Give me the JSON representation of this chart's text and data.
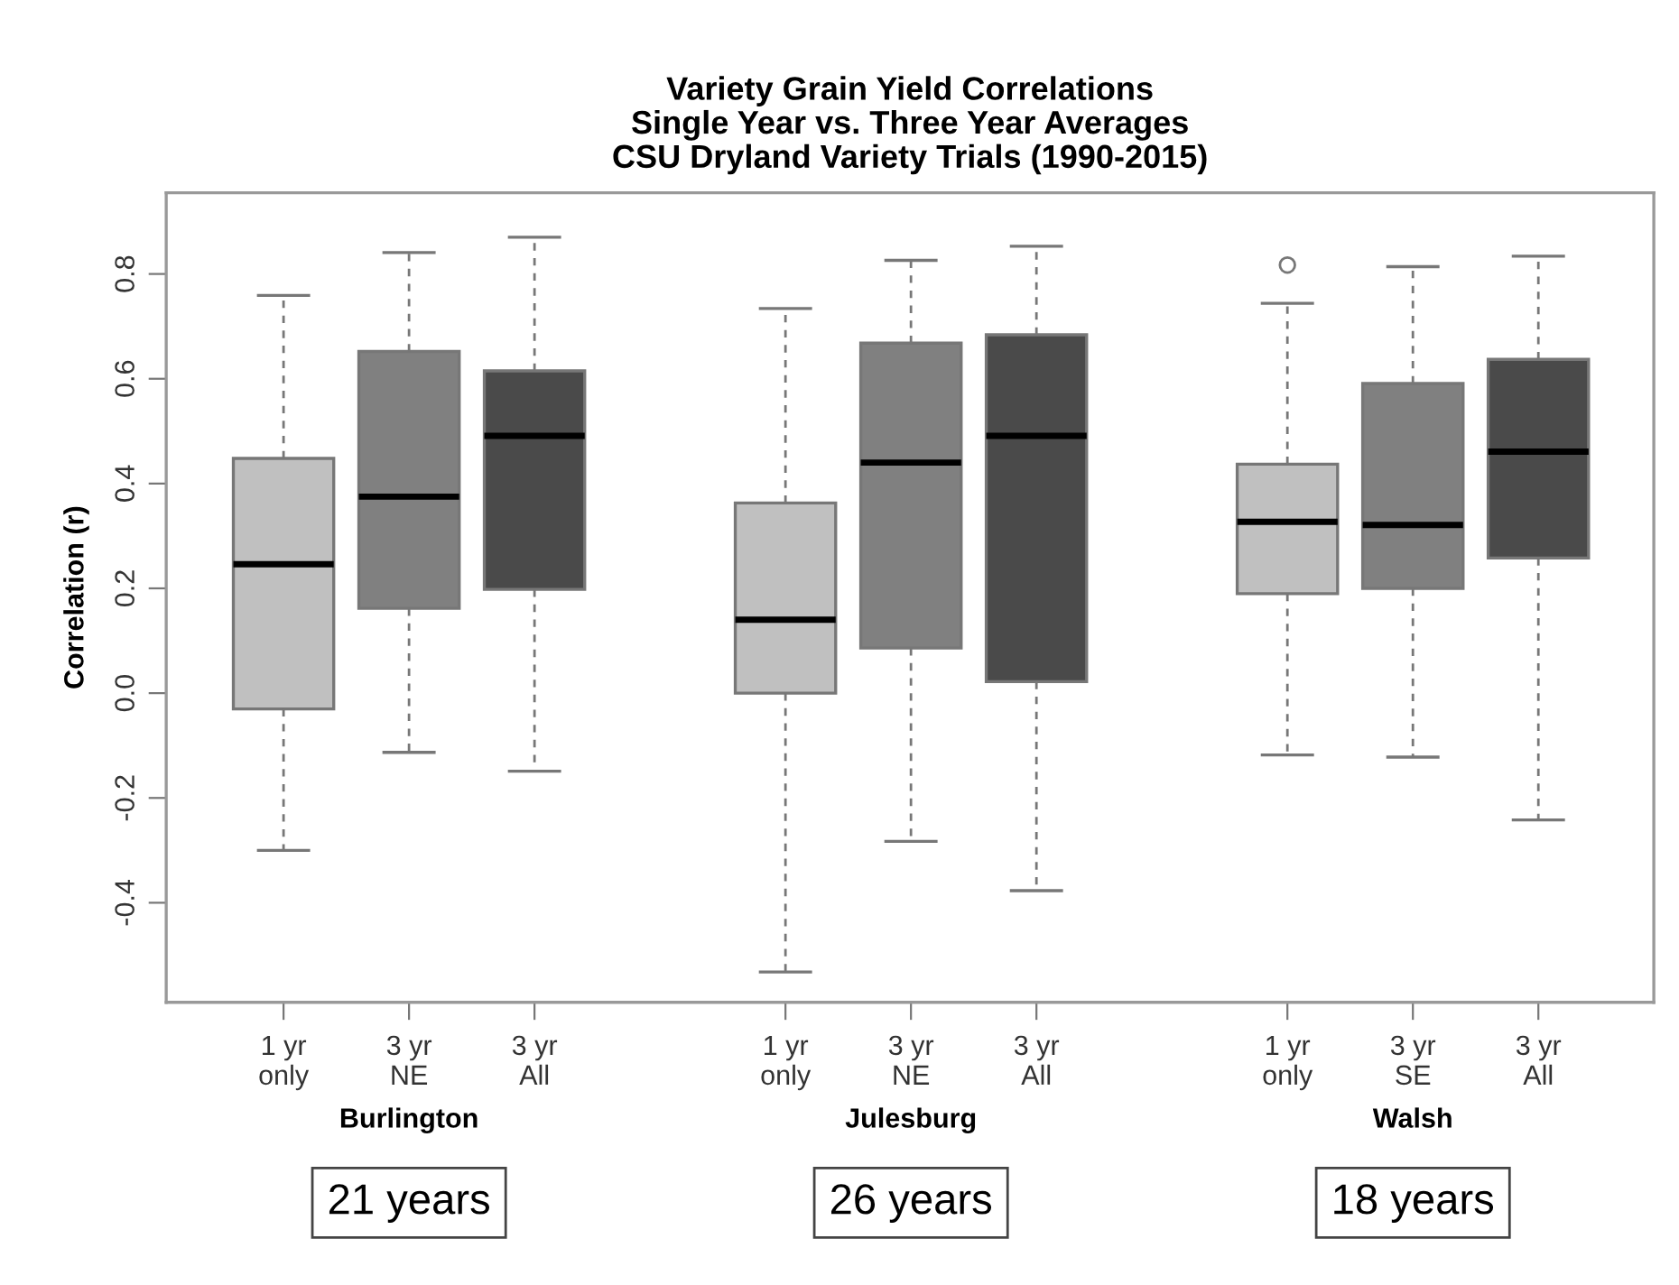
{
  "chart_data": {
    "type": "box",
    "title": "Variety Grain Yield Correlations\nSingle Year vs. Three Year Averages\nCSU Dryland Variety Trials (1990-2015)",
    "ylabel": "Correlation (r)",
    "categories": [
      "1 yr\nonly",
      "3 yr\nNE",
      "3 yr\nAll",
      null,
      "1 yr\nonly",
      "3 yr\nNE",
      "3 yr\nAll",
      null,
      "1 yr\nonly",
      "3 yr\nSE",
      "3 yr\nAll"
    ],
    "colors": [
      "#c0c0c0",
      "#808080",
      "#4a4a4a",
      null,
      "#c0c0c0",
      "#808080",
      "#4a4a4a",
      null,
      "#c0c0c0",
      "#808080",
      "#4a4a4a"
    ],
    "boxes": [
      {
        "low": -0.3,
        "q1": -0.03,
        "median": 0.246,
        "q3": 0.448,
        "high": 0.759
      },
      {
        "low": -0.113,
        "q1": 0.162,
        "median": 0.375,
        "q3": 0.652,
        "high": 0.841
      },
      {
        "low": -0.149,
        "q1": 0.198,
        "median": 0.491,
        "q3": 0.615,
        "high": 0.87
      },
      null,
      {
        "low": -0.532,
        "q1": 0.0,
        "median": 0.14,
        "q3": 0.363,
        "high": 0.734
      },
      {
        "low": -0.283,
        "q1": 0.086,
        "median": 0.44,
        "q3": 0.668,
        "high": 0.826
      },
      {
        "low": -0.377,
        "q1": 0.022,
        "median": 0.491,
        "q3": 0.684,
        "high": 0.853
      },
      null,
      {
        "low": -0.118,
        "q1": 0.19,
        "median": 0.327,
        "q3": 0.437,
        "high": 0.744,
        "outliers": [
          0.817
        ]
      },
      {
        "low": -0.122,
        "q1": 0.2,
        "median": 0.321,
        "q3": 0.591,
        "high": 0.814
      },
      {
        "low": -0.242,
        "q1": 0.258,
        "median": 0.461,
        "q3": 0.637,
        "high": 0.834
      }
    ],
    "ylim": [
      -0.59,
      0.955
    ],
    "yticks": [
      -0.4,
      -0.2,
      {
        "value": 0,
        "label": "0.0"
      },
      0.2,
      0.4,
      0.6,
      0.8
    ],
    "grid": false,
    "annotations": [
      "Burlington",
      "Julesburg",
      "Walsh",
      "21 years",
      "26 years",
      "18 years"
    ]
  }
}
